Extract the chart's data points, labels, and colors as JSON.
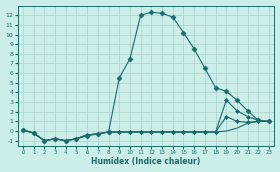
{
  "xlabel": "Humidex (Indice chaleur)",
  "background_color": "#cceee8",
  "grid_color": "#b0d8d0",
  "line_color": "#1a6b6b",
  "xlim": [
    -0.5,
    23.5
  ],
  "ylim": [
    -1.5,
    13.0
  ],
  "xticks": [
    0,
    1,
    2,
    3,
    4,
    5,
    6,
    7,
    8,
    9,
    10,
    11,
    12,
    13,
    14,
    15,
    16,
    17,
    18,
    19,
    20,
    21,
    22,
    23
  ],
  "yticks": [
    -1,
    0,
    1,
    2,
    3,
    4,
    5,
    6,
    7,
    8,
    9,
    10,
    11,
    12
  ],
  "series": [
    {
      "x": [
        0,
        1,
        2,
        3,
        4,
        5,
        6,
        7,
        8,
        9,
        10,
        11,
        12,
        13,
        14,
        15,
        16,
        17,
        18,
        19,
        20,
        21,
        22,
        23
      ],
      "y": [
        0.1,
        -0.2,
        -1.0,
        -0.8,
        -1.0,
        -0.8,
        -0.5,
        -0.3,
        -0.1,
        5.5,
        7.5,
        12.0,
        12.3,
        12.2,
        11.8,
        10.2,
        8.5,
        6.5,
        4.5,
        4.1,
        3.2,
        2.1,
        1.1,
        1.0
      ],
      "marker": "D",
      "markersize": 2.5
    },
    {
      "x": [
        0,
        1,
        2,
        3,
        4,
        5,
        6,
        7,
        8,
        9,
        10,
        11,
        12,
        13,
        14,
        15,
        16,
        17,
        18,
        19,
        20,
        21,
        22,
        23
      ],
      "y": [
        0.1,
        -0.2,
        -1.0,
        -0.8,
        -1.0,
        -0.8,
        -0.4,
        -0.3,
        -0.1,
        -0.1,
        -0.1,
        -0.1,
        -0.1,
        -0.1,
        -0.1,
        -0.1,
        -0.1,
        -0.1,
        -0.1,
        3.2,
        2.1,
        1.5,
        1.1,
        1.0
      ],
      "marker": "D",
      "markersize": 2.0
    },
    {
      "x": [
        0,
        1,
        2,
        3,
        4,
        5,
        6,
        7,
        8,
        9,
        10,
        11,
        12,
        13,
        14,
        15,
        16,
        17,
        18,
        19,
        20,
        21,
        22,
        23
      ],
      "y": [
        0.1,
        -0.2,
        -1.0,
        -0.8,
        -1.0,
        -0.8,
        -0.4,
        -0.3,
        -0.1,
        -0.1,
        -0.1,
        -0.1,
        -0.1,
        -0.1,
        -0.1,
        -0.1,
        -0.1,
        -0.1,
        -0.1,
        1.5,
        1.0,
        0.9,
        1.0,
        1.0
      ],
      "marker": "D",
      "markersize": 2.0
    },
    {
      "x": [
        0,
        1,
        2,
        3,
        4,
        5,
        6,
        7,
        8,
        9,
        10,
        11,
        12,
        13,
        14,
        15,
        16,
        17,
        18,
        19,
        20,
        21,
        22,
        23
      ],
      "y": [
        0.1,
        -0.2,
        -1.0,
        -0.8,
        -1.0,
        -0.8,
        -0.4,
        -0.3,
        -0.1,
        -0.1,
        -0.1,
        -0.1,
        -0.1,
        -0.1,
        -0.1,
        -0.1,
        -0.1,
        -0.1,
        -0.1,
        0.0,
        0.3,
        0.8,
        1.0,
        1.0
      ],
      "marker": null,
      "markersize": 0
    }
  ]
}
